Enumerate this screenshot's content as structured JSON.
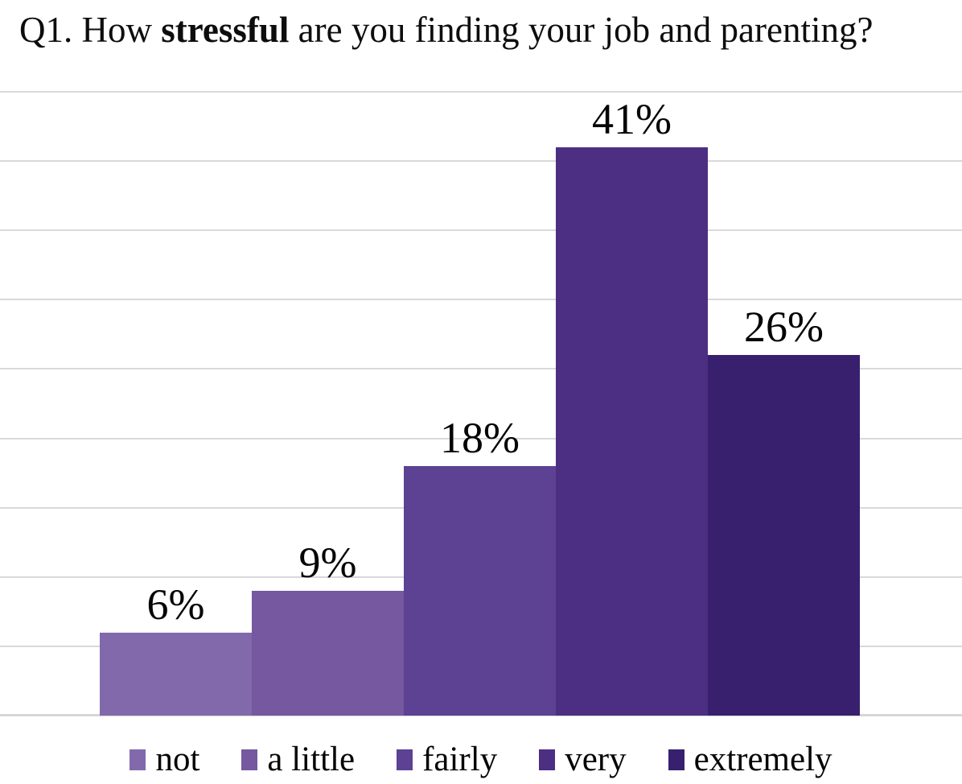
{
  "title": {
    "prefix": "Q1. How ",
    "bold": "stressful",
    "suffix": " are you finding your job and parenting?"
  },
  "chart_data": {
    "type": "bar",
    "title": "Q1. How stressful are you finding your job and parenting?",
    "categories": [
      "not",
      "a little",
      "fairly",
      "very",
      "extremely"
    ],
    "values": [
      6,
      9,
      18,
      41,
      26
    ],
    "value_labels": [
      "6%",
      "9%",
      "18%",
      "41%",
      "26%"
    ],
    "bar_colors": [
      "#8269ab",
      "#75589f",
      "#5d4193",
      "#4c2f82",
      "#38206f"
    ],
    "xlabel": "",
    "ylabel": "",
    "ylim": [
      0,
      45
    ],
    "gridline_step": 5,
    "grid": true,
    "gridline_color": "#d9d9d9",
    "axis_line_color": "#d6d6d6",
    "legend_position": "bottom",
    "legend_entries": [
      "not",
      "a little",
      "fairly",
      "very",
      "extremely"
    ],
    "text_color": "#050505",
    "background_color": "#ffffff"
  }
}
